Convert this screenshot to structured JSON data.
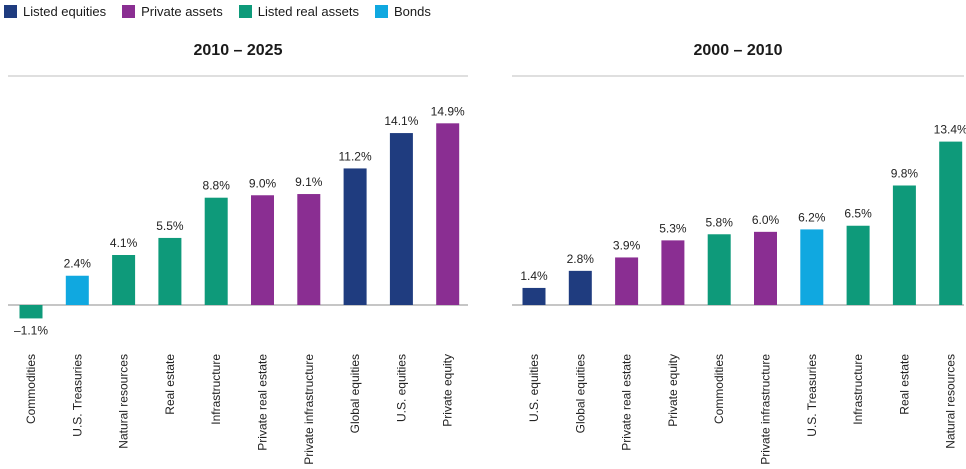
{
  "legend": [
    {
      "label": "Listed equities",
      "color": "#1f3c7f"
    },
    {
      "label": "Private assets",
      "color": "#8a2e92"
    },
    {
      "label": "Listed real assets",
      "color": "#0e9a7a"
    },
    {
      "label": "Bonds",
      "color": "#10a8e0"
    }
  ],
  "chart_data": [
    {
      "type": "bar",
      "title": "2010 – 2025",
      "categories": [
        "Commodities",
        "U.S. Treasuries",
        "Natural resources",
        "Real estate",
        "Infrastructure",
        "Private real estate",
        "Private infrastructure",
        "Global equities",
        "U.S. equities",
        "Private equity"
      ],
      "values": [
        -1.1,
        2.4,
        4.1,
        5.5,
        8.8,
        9.0,
        9.1,
        11.2,
        14.1,
        14.9
      ],
      "value_labels": [
        "–1.1%",
        "2.4%",
        "4.1%",
        "5.5%",
        "8.8%",
        "9.0%",
        "9.1%",
        "11.2%",
        "14.1%",
        "14.9%"
      ],
      "groups": [
        "Listed real assets",
        "Bonds",
        "Listed real assets",
        "Listed real assets",
        "Listed real assets",
        "Private assets",
        "Private assets",
        "Listed equities",
        "Listed equities",
        "Private assets"
      ],
      "ylim": [
        -1.5,
        15.5
      ]
    },
    {
      "type": "bar",
      "title": "2000 – 2010",
      "categories": [
        "U.S. equities",
        "Global equities",
        "Private real estate",
        "Private equity",
        "Commodities",
        "Private infrastructure",
        "U.S. Treasuries",
        "Infrastructure",
        "Real estate",
        "Natural resources"
      ],
      "values": [
        1.4,
        2.8,
        3.9,
        5.3,
        5.8,
        6.0,
        6.2,
        6.5,
        9.8,
        13.4
      ],
      "value_labels": [
        "1.4%",
        "2.8%",
        "3.9%",
        "5.3%",
        "5.8%",
        "6.0%",
        "6.2%",
        "6.5%",
        "9.8%",
        "13.4%"
      ],
      "groups": [
        "Listed equities",
        "Listed equities",
        "Private assets",
        "Private assets",
        "Listed real assets",
        "Private assets",
        "Bonds",
        "Listed real assets",
        "Listed real assets",
        "Listed real assets"
      ],
      "ylim": [
        -1.5,
        15.5
      ]
    }
  ]
}
